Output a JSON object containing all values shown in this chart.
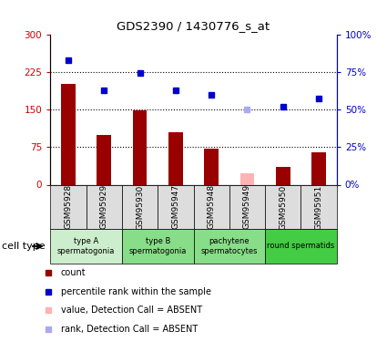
{
  "title": "GDS2390 / 1430776_s_at",
  "samples": [
    "GSM95928",
    "GSM95929",
    "GSM95930",
    "GSM95947",
    "GSM95948",
    "GSM95949",
    "GSM95950",
    "GSM95951"
  ],
  "bar_values": [
    200,
    100,
    148,
    105,
    72,
    null,
    35,
    65
  ],
  "bar_color": "#990000",
  "absent_bar_value": 22,
  "absent_bar_index": 5,
  "absent_bar_color": "#ffb3b3",
  "rank_values": [
    83,
    63,
    74,
    63,
    60,
    null,
    52,
    57
  ],
  "rank_color": "#0000cc",
  "absent_rank_value": 50,
  "absent_rank_index": 5,
  "absent_rank_color": "#aaaaee",
  "ylim_left": [
    0,
    300
  ],
  "ylim_right": [
    0,
    100
  ],
  "yticks_left": [
    0,
    75,
    150,
    225,
    300
  ],
  "ytick_labels_left": [
    "0",
    "75",
    "150",
    "225",
    "300"
  ],
  "yticks_right": [
    0,
    25,
    50,
    75,
    100
  ],
  "ytick_labels_right": [
    "0%",
    "25%",
    "50%",
    "75%",
    "100%"
  ],
  "hlines": [
    75,
    150,
    225
  ],
  "cell_type_groups": [
    {
      "label": "type A\nspermatogonia",
      "start": 0,
      "end": 2,
      "color": "#cceecc"
    },
    {
      "label": "type B\nspermatogonia",
      "start": 2,
      "end": 4,
      "color": "#88dd88"
    },
    {
      "label": "pachytene\nspermatocytes",
      "start": 4,
      "end": 6,
      "color": "#88dd88"
    },
    {
      "label": "round spermatids",
      "start": 6,
      "end": 8,
      "color": "#44cc44"
    }
  ],
  "cell_type_label": "cell type",
  "legend_items": [
    {
      "label": "count",
      "color": "#990000"
    },
    {
      "label": "percentile rank within the sample",
      "color": "#0000cc"
    },
    {
      "label": "value, Detection Call = ABSENT",
      "color": "#ffb3b3"
    },
    {
      "label": "rank, Detection Call = ABSENT",
      "color": "#aaaaee"
    }
  ],
  "sample_box_color": "#dddddd",
  "bar_width": 0.4,
  "rank_marker_size": 5
}
